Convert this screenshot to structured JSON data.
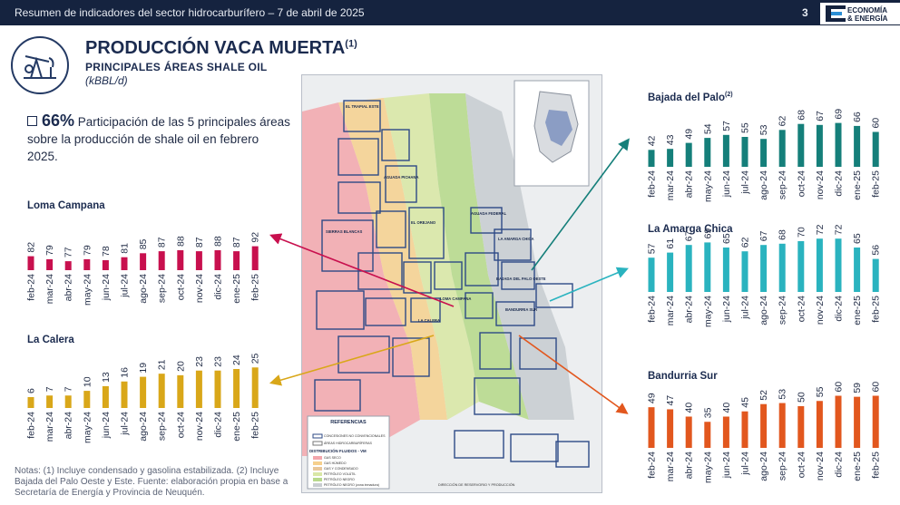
{
  "header": {
    "text": "Resumen de indicadores del sector hidrocarburífero  – 7 de abril de 2025",
    "page": "3",
    "logo_line1": "ECONOMÍA",
    "logo_line2": "& ENERGÍA"
  },
  "title": {
    "main": "PRODUCCIÓN VACA MUERTA",
    "sup": "(1)",
    "sub": "PRINCIPALES ÁREAS SHALE OIL",
    "unit": "(kBBL/d)"
  },
  "stat": {
    "pct": "66%",
    "text": "Participación de las 5 principales áreas sobre la producción de shale oil en febrero 2025."
  },
  "notes": "Notas: (1) Incluye condensado y gasolina estabilizada. (2) Incluye Bajada del Palo Oeste y Este. Fuente: elaboración propia en base a Secretaría de Energía y Provincia de Neuquén.",
  "colors": {
    "loma": "#c8104e",
    "calera": "#d9a719",
    "bajada": "#157f7a",
    "amarga": "#2ab3bf",
    "bandurria": "#e2571e",
    "navy": "#15233f"
  },
  "chart_data": [
    {
      "type": "bar",
      "title": "Loma Campana",
      "categories": [
        "feb-24",
        "mar-24",
        "abr-24",
        "may-24",
        "jun-24",
        "jul-24",
        "ago-24",
        "sep-24",
        "oct-24",
        "nov-24",
        "dic-24",
        "ene-25",
        "feb-25"
      ],
      "values": [
        82,
        79,
        77,
        79,
        78,
        81,
        85,
        87,
        88,
        87,
        88,
        87,
        92
      ]
    },
    {
      "type": "bar",
      "title": "La Calera",
      "categories": [
        "feb-24",
        "mar-24",
        "abr-24",
        "may-24",
        "jun-24",
        "jul-24",
        "ago-24",
        "sep-24",
        "oct-24",
        "nov-24",
        "dic-24",
        "ene-25",
        "feb-25"
      ],
      "values": [
        6,
        7,
        7,
        10,
        13,
        16,
        19,
        21,
        20,
        23,
        23,
        24,
        25
      ]
    },
    {
      "type": "bar",
      "title": "Bajada del Palo",
      "title_sup": "(2)",
      "categories": [
        "feb-24",
        "mar-24",
        "abr-24",
        "may-24",
        "jun-24",
        "jul-24",
        "ago-24",
        "sep-24",
        "oct-24",
        "nov-24",
        "dic-24",
        "ene-25",
        "feb-25"
      ],
      "values": [
        42,
        43,
        49,
        54,
        57,
        55,
        53,
        62,
        68,
        67,
        69,
        66,
        60
      ]
    },
    {
      "type": "bar",
      "title": "La Amarga Chica",
      "categories": [
        "feb-24",
        "mar-24",
        "abr-24",
        "may-24",
        "jun-24",
        "jul-24",
        "ago-24",
        "sep-24",
        "oct-24",
        "nov-24",
        "dic-24",
        "ene-25",
        "feb-25"
      ],
      "values": [
        57,
        61,
        67,
        69,
        65,
        62,
        67,
        68,
        70,
        72,
        72,
        65,
        56
      ]
    },
    {
      "type": "bar",
      "title": "Bandurria Sur",
      "categories": [
        "feb-24",
        "mar-24",
        "abr-24",
        "may-24",
        "jun-24",
        "jul-24",
        "ago-24",
        "sep-24",
        "oct-24",
        "nov-24",
        "dic-24",
        "ene-25",
        "feb-25"
      ],
      "values": [
        49,
        47,
        40,
        35,
        40,
        45,
        52,
        53,
        50,
        55,
        60,
        59,
        60
      ]
    }
  ],
  "map": {
    "legend_title": "REFERENCIAS",
    "legend_items": [
      "CONCESIONES NO CONVENCIONALES",
      "ÁREAS HIDROCARBURÍFERAS"
    ],
    "fluids_title": "DISTRIBUCIÓN FLUIDOS - VM",
    "fluids": [
      "GAS SECO",
      "GAS HÚMEDO",
      "GAS Y CONDENSADO",
      "PETRÓLEO VOLÁTIL",
      "PETRÓLEO NEGRO",
      "PETRÓLEO NEGRO (zona inmadura)"
    ],
    "footer": "DIRECCIÓN DE RESERVORIO Y PRODUCCIÓN",
    "labels": [
      "LOMA CAMPANA",
      "LA CALERA",
      "BAJADA DEL PALO OESTE",
      "LA AMARGA CHICA",
      "BANDURRIA SUR",
      "EL TRAPIAL ESTE",
      "AGUADA PICHANA",
      "SIERRAS BLANCAS",
      "EL OREJANO",
      "AGUADA FEDERAL"
    ]
  }
}
